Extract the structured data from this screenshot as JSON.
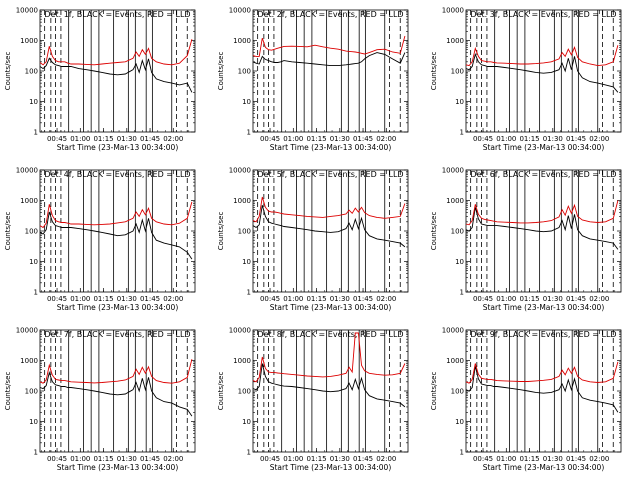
{
  "colors": {
    "events": "#000000",
    "lld": "#dd0000",
    "markers": "#000000",
    "background": "#ffffff"
  },
  "shared": {
    "ylabel": "Counts/sec",
    "xlabel": "Start Time (23-Mar-13 00:34:00)",
    "y_log_scale": true,
    "ylim": [
      1,
      10000
    ],
    "y_ticks": [
      "1",
      "10",
      "100",
      "1000",
      "10000"
    ],
    "x_range_minutes_after_start": [
      0,
      100
    ],
    "x_ticks": [
      "00:45",
      "01:00",
      "01:15",
      "01:30",
      "01:45",
      "02:00"
    ],
    "x_tick_minutes_after_start": [
      11,
      26,
      41,
      56,
      71,
      86
    ],
    "dashed_markers_minutes": [
      3,
      7,
      10,
      13.5,
      88,
      95
    ],
    "solid_markers_minutes": [
      18.5,
      28,
      33,
      38,
      47.5,
      57,
      61.5,
      68.5,
      72.5,
      85
    ]
  },
  "chart_data": [
    {
      "type": "line",
      "title": "Det. 1f, BLACK = Events, RED = LLD",
      "x_minutes": [
        0,
        2,
        4,
        6,
        8,
        10,
        12,
        14,
        16,
        18,
        20,
        25,
        30,
        35,
        40,
        45,
        50,
        55,
        60,
        62,
        64,
        66,
        68,
        70,
        72,
        75,
        80,
        85,
        90,
        95,
        98,
        100
      ],
      "series": [
        {
          "name": "Events",
          "values": [
            140,
            120,
            150,
            260,
            190,
            160,
            150,
            140,
            140,
            140,
            140,
            120,
            110,
            100,
            90,
            80,
            75,
            80,
            110,
            170,
            90,
            220,
            110,
            250,
            90,
            55,
            45,
            40,
            35,
            40,
            20,
            null
          ]
        },
        {
          "name": "LLD",
          "values": [
            190,
            160,
            200,
            650,
            300,
            220,
            200,
            200,
            200,
            180,
            170,
            170,
            165,
            160,
            170,
            180,
            190,
            200,
            260,
            420,
            300,
            500,
            350,
            550,
            260,
            200,
            170,
            160,
            180,
            320,
            1100,
            null
          ]
        }
      ]
    },
    {
      "type": "line",
      "title": "Det. 2f, BLACK = Events, RED = LLD",
      "x_minutes": [
        0,
        2,
        4,
        6,
        8,
        10,
        12,
        14,
        16,
        18,
        20,
        25,
        30,
        35,
        40,
        45,
        50,
        55,
        60,
        62,
        64,
        66,
        68,
        70,
        72,
        75,
        80,
        85,
        90,
        95,
        98,
        100
      ],
      "series": [
        {
          "name": "Events",
          "values": [
            200,
            180,
            170,
            300,
            240,
            220,
            200,
            190,
            190,
            200,
            220,
            200,
            190,
            180,
            170,
            160,
            150,
            150,
            160,
            165,
            170,
            175,
            180,
            200,
            250,
            320,
            400,
            350,
            250,
            180,
            400,
            null
          ]
        },
        {
          "name": "LLD",
          "values": [
            320,
            300,
            300,
            1200,
            600,
            500,
            480,
            520,
            560,
            600,
            640,
            650,
            640,
            620,
            700,
            620,
            560,
            520,
            450,
            440,
            430,
            420,
            400,
            380,
            360,
            400,
            500,
            520,
            420,
            380,
            1400,
            null
          ]
        }
      ]
    },
    {
      "type": "line",
      "title": "Det. 3f, BLACK = Events, RED = LLD",
      "x_minutes": [
        0,
        2,
        4,
        6,
        8,
        10,
        12,
        14,
        16,
        18,
        20,
        25,
        30,
        35,
        40,
        45,
        50,
        55,
        60,
        62,
        64,
        66,
        68,
        70,
        72,
        75,
        80,
        85,
        90,
        95,
        98,
        100
      ],
      "series": [
        {
          "name": "Events",
          "values": [
            120,
            110,
            140,
            350,
            200,
            160,
            150,
            140,
            140,
            140,
            140,
            130,
            120,
            110,
            100,
            90,
            85,
            90,
            110,
            180,
            100,
            260,
            110,
            300,
            100,
            60,
            45,
            40,
            35,
            30,
            20,
            null
          ]
        },
        {
          "name": "LLD",
          "values": [
            160,
            150,
            200,
            550,
            300,
            220,
            210,
            200,
            200,
            190,
            185,
            180,
            175,
            170,
            170,
            175,
            185,
            200,
            250,
            400,
            300,
            520,
            340,
            600,
            280,
            200,
            170,
            150,
            160,
            200,
            700,
            null
          ]
        }
      ]
    },
    {
      "type": "line",
      "title": "Det. 4f, BLACK = Events, RED = LLD",
      "x_minutes": [
        0,
        2,
        4,
        6,
        8,
        10,
        12,
        14,
        16,
        18,
        20,
        25,
        30,
        35,
        40,
        45,
        50,
        55,
        60,
        62,
        64,
        66,
        68,
        70,
        72,
        75,
        80,
        85,
        90,
        95,
        98,
        100
      ],
      "series": [
        {
          "name": "Events",
          "values": [
            90,
            80,
            110,
            420,
            200,
            150,
            140,
            130,
            130,
            130,
            130,
            120,
            110,
            100,
            90,
            80,
            70,
            75,
            100,
            170,
            90,
            230,
            100,
            260,
            90,
            50,
            40,
            35,
            30,
            20,
            12,
            null
          ]
        },
        {
          "name": "LLD",
          "values": [
            150,
            130,
            180,
            750,
            320,
            220,
            200,
            190,
            190,
            180,
            170,
            170,
            165,
            160,
            165,
            170,
            185,
            200,
            260,
            420,
            300,
            500,
            340,
            560,
            260,
            200,
            170,
            160,
            180,
            260,
            900,
            null
          ]
        }
      ]
    },
    {
      "type": "line",
      "title": "Det. 5f, BLACK = Events, RED = LLD",
      "x_minutes": [
        0,
        2,
        4,
        6,
        8,
        10,
        12,
        14,
        16,
        18,
        20,
        25,
        30,
        35,
        40,
        45,
        50,
        55,
        60,
        62,
        64,
        66,
        68,
        70,
        72,
        75,
        80,
        85,
        90,
        95,
        98,
        100
      ],
      "series": [
        {
          "name": "Events",
          "values": [
            150,
            130,
            160,
            700,
            300,
            200,
            180,
            170,
            160,
            150,
            140,
            130,
            120,
            110,
            100,
            95,
            90,
            95,
            120,
            180,
            110,
            240,
            120,
            260,
            110,
            70,
            55,
            50,
            45,
            40,
            30,
            null
          ]
        },
        {
          "name": "LLD",
          "values": [
            220,
            200,
            300,
            1300,
            600,
            450,
            420,
            420,
            400,
            380,
            360,
            340,
            320,
            300,
            290,
            280,
            300,
            320,
            360,
            480,
            380,
            560,
            420,
            600,
            400,
            320,
            280,
            260,
            280,
            300,
            800,
            null
          ]
        }
      ]
    },
    {
      "type": "line",
      "title": "Det. 6f, BLACK = Events, RED = LLD",
      "x_minutes": [
        0,
        2,
        4,
        6,
        8,
        10,
        12,
        14,
        16,
        18,
        20,
        25,
        30,
        35,
        40,
        45,
        50,
        55,
        60,
        62,
        64,
        66,
        68,
        70,
        72,
        75,
        80,
        85,
        90,
        95,
        98,
        100
      ],
      "series": [
        {
          "name": "Events",
          "values": [
            110,
            100,
            130,
            600,
            250,
            170,
            160,
            150,
            150,
            150,
            150,
            140,
            130,
            120,
            110,
            100,
            95,
            100,
            130,
            220,
            110,
            320,
            120,
            350,
            110,
            70,
            55,
            50,
            45,
            40,
            25,
            null
          ]
        },
        {
          "name": "LLD",
          "values": [
            170,
            160,
            220,
            750,
            350,
            260,
            240,
            230,
            220,
            210,
            200,
            195,
            190,
            185,
            185,
            190,
            200,
            220,
            290,
            500,
            330,
            650,
            380,
            700,
            300,
            230,
            200,
            190,
            200,
            260,
            1000,
            null
          ]
        }
      ]
    },
    {
      "type": "line",
      "title": "Det. 7f, BLACK = Events, RED = LLD",
      "x_minutes": [
        0,
        2,
        4,
        6,
        8,
        10,
        12,
        14,
        16,
        18,
        20,
        25,
        30,
        35,
        40,
        45,
        50,
        55,
        60,
        62,
        64,
        66,
        68,
        70,
        72,
        75,
        80,
        85,
        90,
        95,
        98,
        100
      ],
      "series": [
        {
          "name": "Events",
          "values": [
            130,
            120,
            150,
            400,
            200,
            160,
            150,
            140,
            140,
            130,
            130,
            120,
            110,
            100,
            90,
            80,
            75,
            80,
            110,
            190,
            100,
            260,
            110,
            280,
            100,
            60,
            45,
            40,
            30,
            25,
            15,
            null
          ]
        },
        {
          "name": "LLD",
          "values": [
            200,
            180,
            230,
            700,
            330,
            240,
            230,
            220,
            220,
            210,
            200,
            195,
            190,
            185,
            190,
            200,
            210,
            230,
            300,
            520,
            350,
            600,
            380,
            620,
            300,
            220,
            190,
            180,
            200,
            280,
            1100,
            null
          ]
        }
      ]
    },
    {
      "type": "line",
      "title": "Det. 8f, BLACK = Events, RED = LLD",
      "x_minutes": [
        0,
        2,
        4,
        6,
        8,
        10,
        12,
        14,
        16,
        18,
        20,
        25,
        30,
        35,
        40,
        45,
        50,
        55,
        60,
        62,
        64,
        66,
        68,
        70,
        72,
        75,
        80,
        85,
        90,
        95,
        98,
        100
      ],
      "series": [
        {
          "name": "Events",
          "values": [
            120,
            110,
            140,
            800,
            300,
            200,
            180,
            170,
            160,
            150,
            145,
            140,
            130,
            120,
            110,
            100,
            95,
            100,
            120,
            180,
            110,
            240,
            120,
            260,
            110,
            70,
            55,
            50,
            45,
            40,
            30,
            null
          ]
        },
        {
          "name": "LLD",
          "values": [
            220,
            200,
            280,
            1300,
            550,
            420,
            400,
            400,
            390,
            380,
            370,
            350,
            330,
            310,
            300,
            290,
            300,
            330,
            380,
            600,
            420,
            8000,
            8000,
            700,
            460,
            380,
            350,
            330,
            340,
            380,
            800,
            null
          ]
        }
      ]
    },
    {
      "type": "line",
      "title": "Det. 9f, BLACK = Events, RED = LLD",
      "x_minutes": [
        0,
        2,
        4,
        6,
        8,
        10,
        12,
        14,
        16,
        18,
        20,
        25,
        30,
        35,
        40,
        45,
        50,
        55,
        60,
        62,
        64,
        66,
        68,
        70,
        72,
        75,
        80,
        85,
        90,
        95,
        98,
        100
      ],
      "series": [
        {
          "name": "Events",
          "values": [
            110,
            100,
            130,
            650,
            250,
            170,
            160,
            150,
            150,
            140,
            140,
            130,
            120,
            110,
            100,
            90,
            85,
            90,
            110,
            170,
            100,
            230,
            110,
            250,
            100,
            60,
            50,
            45,
            40,
            35,
            20,
            null
          ]
        },
        {
          "name": "LLD",
          "values": [
            200,
            180,
            240,
            800,
            350,
            260,
            250,
            240,
            240,
            230,
            220,
            215,
            210,
            205,
            205,
            215,
            225,
            240,
            300,
            480,
            340,
            560,
            380,
            600,
            300,
            230,
            200,
            190,
            200,
            260,
            900,
            null
          ]
        }
      ]
    }
  ]
}
